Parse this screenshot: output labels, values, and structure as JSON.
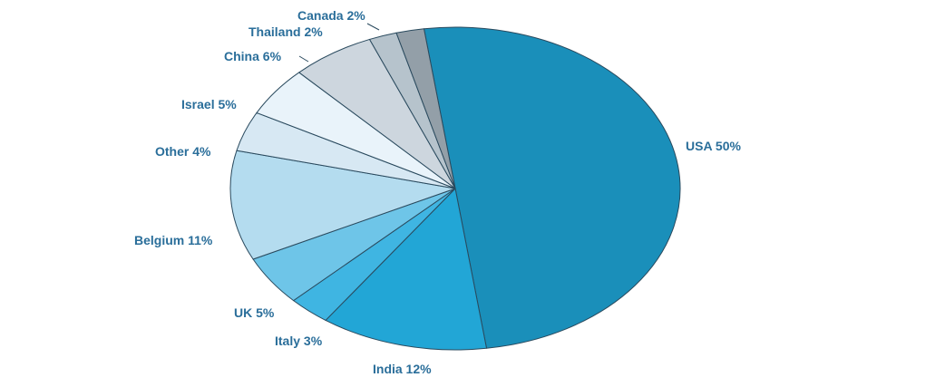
{
  "chart_data": {
    "type": "pie",
    "direction": "clockwise",
    "start_angle": "top, slightly left of vertical",
    "slices": [
      {
        "label": "USA 50%",
        "name": "USA",
        "value": 50,
        "color": "#1a8fba"
      },
      {
        "label": "India 12%",
        "name": "India",
        "value": 12,
        "color": "#22a6d6"
      },
      {
        "label": "Italy 3%",
        "name": "Italy",
        "value": 3,
        "color": "#3fb5e2"
      },
      {
        "label": "UK 5%",
        "name": "UK",
        "value": 5,
        "color": "#6ec5e8"
      },
      {
        "label": "Belgium 11%",
        "name": "Belgium",
        "value": 11,
        "color": "#b4dcef"
      },
      {
        "label": "Other 4%",
        "name": "Other",
        "value": 4,
        "color": "#d7e8f3"
      },
      {
        "label": "Israel 5%",
        "name": "Israel",
        "value": 5,
        "color": "#e9f3fa"
      },
      {
        "label": "China 6%",
        "name": "China",
        "value": 6,
        "color": "#cdd6de"
      },
      {
        "label": "Thailand 2%",
        "name": "Thailand",
        "value": 2,
        "color": "#b6c3cc"
      },
      {
        "label": "Canada 2%",
        "name": "Canada",
        "value": 2,
        "color": "#939fa8"
      }
    ],
    "label_color": "#2a6e9a",
    "edge_color": "#2a4a5e"
  }
}
